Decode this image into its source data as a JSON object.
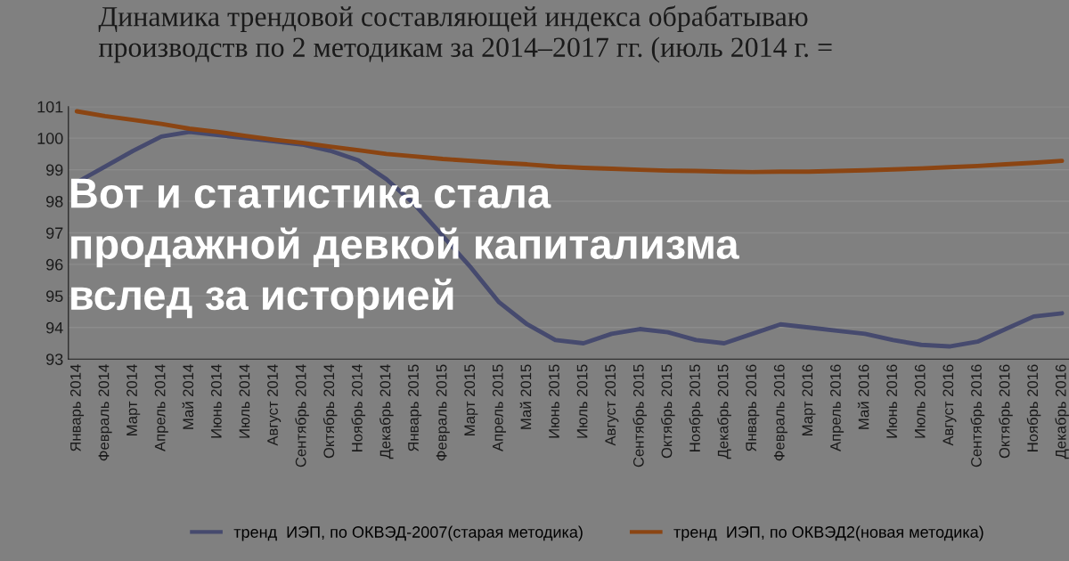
{
  "chart_data": {
    "type": "line",
    "title": "Динамика трендовой составляющей индекса обрабатываю\nпроизводств по 2 методикам за 2014–2017 гг. (июль 2014 г. =",
    "annotations": [
      "Вот и статистика стала\nпродажной девкой капитализма\nвслед за историей"
    ],
    "categories": [
      "Январь 2014",
      "Февраль 2014",
      "Март 2014",
      "Апрель 2014",
      "Май 2014",
      "Июнь 2014",
      "Июль 2014",
      "Август 2014",
      "Сентябрь 2014",
      "Октябрь 2014",
      "Ноябрь 2014",
      "Декабрь 2014",
      "Январь 2015",
      "Февраль 2015",
      "Март 2015",
      "Апрель 2015",
      "Май 2015",
      "Июнь 2015",
      "Июль 2015",
      "Август 2015",
      "Сентябрь 2015",
      "Октябрь 2015",
      "Ноябрь 2015",
      "Декабрь 2015",
      "Январь 2016",
      "Февраль 2016",
      "Март 2016",
      "Апрель 2016",
      "Май 2016",
      "Июнь 2016",
      "Июль 2016",
      "Август 2016",
      "Сентябрь 2016",
      "Октябрь 2016",
      "Ноябрь 2016",
      "Декабрь 2016"
    ],
    "series": [
      {
        "name": "тренд  ИЭП, по ОКВЭД-2007(старая методика)",
        "color": "#464a6e",
        "values": [
          98.6,
          99.1,
          99.6,
          100.05,
          100.2,
          100.1,
          100.0,
          99.9,
          99.8,
          99.6,
          99.3,
          98.7,
          97.9,
          96.9,
          95.9,
          94.8,
          94.1,
          93.6,
          93.5,
          93.8,
          93.95,
          93.85,
          93.6,
          93.5,
          93.8,
          94.1,
          94.0,
          93.9,
          93.8,
          93.6,
          93.45,
          93.4,
          93.55,
          93.95,
          94.35,
          94.45
        ]
      },
      {
        "name": "тренд  ИЭП, по ОКВЭД2(новая методика)",
        "color": "#8b4513",
        "values": [
          100.85,
          100.7,
          100.58,
          100.45,
          100.3,
          100.2,
          100.07,
          99.95,
          99.85,
          99.73,
          99.62,
          99.5,
          99.42,
          99.34,
          99.28,
          99.22,
          99.17,
          99.1,
          99.06,
          99.03,
          99.0,
          98.97,
          98.96,
          98.94,
          98.93,
          98.94,
          98.94,
          98.96,
          98.98,
          99.01,
          99.04,
          99.08,
          99.12,
          99.17,
          99.22,
          99.28
        ]
      }
    ],
    "ylim": [
      93,
      101
    ],
    "yticks": [
      93,
      94,
      95,
      96,
      97,
      98,
      99,
      100,
      101
    ],
    "grid": "y",
    "legend": "bottom",
    "marker": "none",
    "line_style": "solid"
  }
}
